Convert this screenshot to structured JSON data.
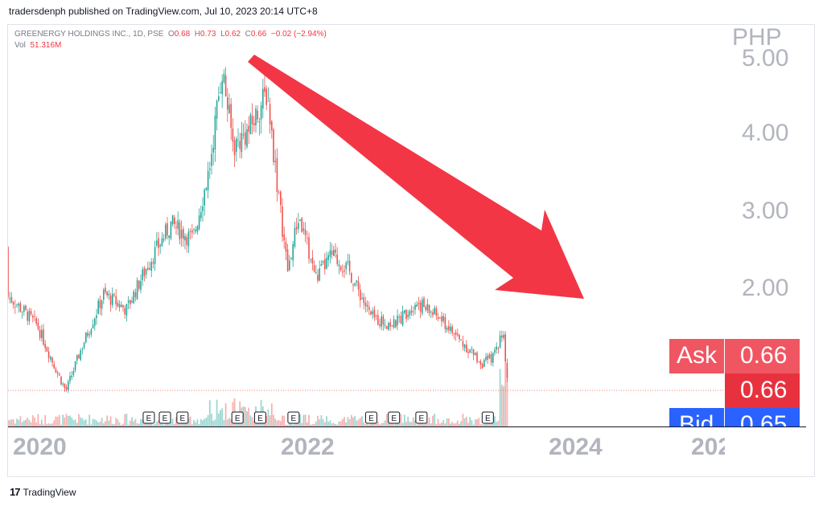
{
  "publisher_line": "tradersdenph published on TradingView.com, Jul 10, 2023 20:14 UTC+8",
  "legend": {
    "symbol": "GREENERGY HOLDINGS INC., 1D, PSE",
    "o_key": "O",
    "o_val": "0.68",
    "h_key": "H",
    "h_val": "0.73",
    "l_key": "L",
    "l_val": "0.62",
    "c_key": "C",
    "c_val": "0.66",
    "change": "−0.02 (−2.94%)",
    "vol_key": "Vol",
    "vol_val": "51.316M"
  },
  "currency": "PHP",
  "price_labels": [
    "5.00",
    "4.00",
    "3.00",
    "2.00"
  ],
  "ask": {
    "label": "Ask",
    "value": "0.66"
  },
  "last": {
    "value": "0.66"
  },
  "bid": {
    "label": "Bid",
    "value": "0.65"
  },
  "x_labels": [
    "2020",
    "2022",
    "2024",
    "202"
  ],
  "earnings_marker": "E",
  "footer": {
    "brand": "TradingView"
  },
  "colors": {
    "up": "#26a69a",
    "down": "#ef5350",
    "arrow": "#f23645",
    "ask": "#f05662",
    "last": "#e8313e",
    "bid": "#2962ff"
  },
  "chart_data": {
    "type": "candlestick",
    "title": "GREENERGY HOLDINGS INC., 1D, PSE",
    "ylabel": "PHP",
    "ylim": [
      0.5,
      5.0
    ],
    "x_ticks": [
      "2020",
      "2022",
      "2024"
    ],
    "close_path": [
      {
        "date": "2019-07-01",
        "close": 2.5
      },
      {
        "date": "2019-09-01",
        "close": 2.0
      },
      {
        "date": "2019-11-01",
        "close": 1.8
      },
      {
        "date": "2020-01-01",
        "close": 1.5
      },
      {
        "date": "2020-02-15",
        "close": 1.0
      },
      {
        "date": "2020-03-20",
        "close": 0.65
      },
      {
        "date": "2020-05-01",
        "close": 1.2
      },
      {
        "date": "2020-07-01",
        "close": 1.9
      },
      {
        "date": "2020-09-01",
        "close": 1.7
      },
      {
        "date": "2020-11-01",
        "close": 2.3
      },
      {
        "date": "2021-01-01",
        "close": 2.8
      },
      {
        "date": "2021-03-01",
        "close": 2.6
      },
      {
        "date": "2021-04-15",
        "close": 3.5
      },
      {
        "date": "2021-05-20",
        "close": 4.8
      },
      {
        "date": "2021-06-20",
        "close": 3.8
      },
      {
        "date": "2021-08-01",
        "close": 4.0
      },
      {
        "date": "2021-09-20",
        "close": 4.5
      },
      {
        "date": "2021-10-20",
        "close": 3.2
      },
      {
        "date": "2021-11-15",
        "close": 2.2
      },
      {
        "date": "2021-12-15",
        "close": 2.9
      },
      {
        "date": "2022-02-01",
        "close": 2.1
      },
      {
        "date": "2022-03-15",
        "close": 2.4
      },
      {
        "date": "2022-05-01",
        "close": 2.2
      },
      {
        "date": "2022-07-01",
        "close": 1.6
      },
      {
        "date": "2022-09-01",
        "close": 1.5
      },
      {
        "date": "2022-11-01",
        "close": 1.8
      },
      {
        "date": "2023-01-01",
        "close": 1.6
      },
      {
        "date": "2023-03-01",
        "close": 1.3
      },
      {
        "date": "2023-05-01",
        "close": 1.0
      },
      {
        "date": "2023-06-01",
        "close": 1.1
      },
      {
        "date": "2023-06-25",
        "close": 1.45
      },
      {
        "date": "2023-07-10",
        "close": 0.66
      }
    ],
    "last": {
      "open": 0.68,
      "high": 0.73,
      "low": 0.62,
      "close": 0.66,
      "change": -0.02,
      "change_pct": -2.94
    },
    "volume_last": "51.316M",
    "ask": 0.66,
    "bid": 0.65,
    "earnings_dates": [
      "2019-08-01",
      "2020-11-01",
      "2020-12-15",
      "2021-02-01",
      "2021-07-01",
      "2021-09-01",
      "2021-12-01",
      "2022-07-01",
      "2022-09-01",
      "2022-11-15",
      "2023-05-15"
    ]
  }
}
